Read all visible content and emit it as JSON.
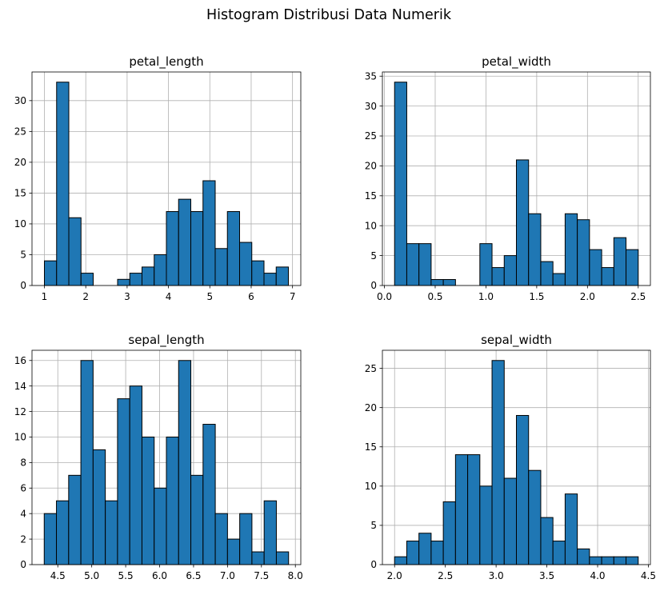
{
  "figure": {
    "title": "Histogram Distribusi Data Numerik"
  },
  "colors": {
    "bar_fill": "#1f77b4",
    "bar_edge": "#000000",
    "grid": "#b0b0b0",
    "axis": "#000000"
  },
  "chart_data": [
    {
      "type": "bar",
      "title": "petal_length",
      "bin_width": 0.295,
      "bin_starts": [
        1.0,
        1.295,
        1.59,
        1.885,
        2.18,
        2.475,
        2.77,
        3.065,
        3.36,
        3.655,
        3.95,
        4.245,
        4.54,
        4.835,
        5.13,
        5.425,
        5.72,
        6.015,
        6.31,
        6.605
      ],
      "values": [
        4,
        33,
        11,
        2,
        0,
        0,
        1,
        2,
        3,
        5,
        12,
        14,
        12,
        17,
        6,
        12,
        7,
        4,
        2,
        3
      ],
      "xlim": [
        0.7,
        7.2
      ],
      "ylim": [
        0,
        34.65
      ],
      "xticks": [
        "1",
        "2",
        "3",
        "4",
        "5",
        "6",
        "7"
      ],
      "yticks": [
        "0",
        "5",
        "10",
        "15",
        "20",
        "25",
        "30"
      ],
      "grid": true
    },
    {
      "type": "bar",
      "title": "petal_width",
      "bin_width": 0.12,
      "bin_starts": [
        0.1,
        0.22,
        0.34,
        0.46,
        0.58,
        0.7,
        0.82,
        0.94,
        1.06,
        1.18,
        1.3,
        1.42,
        1.54,
        1.66,
        1.78,
        1.9,
        2.02,
        2.14,
        2.26,
        2.38
      ],
      "values": [
        34,
        7,
        7,
        1,
        1,
        0,
        0,
        7,
        3,
        5,
        21,
        12,
        4,
        2,
        12,
        11,
        6,
        3,
        8,
        6
      ],
      "xlim": [
        -0.02,
        2.62
      ],
      "ylim": [
        0,
        35.7
      ],
      "xticks": [
        "0.0",
        "0.5",
        "1.0",
        "1.5",
        "2.0",
        "2.5"
      ],
      "yticks": [
        "0",
        "5",
        "10",
        "15",
        "20",
        "25",
        "30",
        "35"
      ],
      "grid": true
    },
    {
      "type": "bar",
      "title": "sepal_length",
      "bin_width": 0.18,
      "bin_starts": [
        4.3,
        4.48,
        4.66,
        4.84,
        5.02,
        5.2,
        5.38,
        5.56,
        5.74,
        5.92,
        6.1,
        6.28,
        6.46,
        6.64,
        6.82,
        7.0,
        7.18,
        7.36,
        7.54,
        7.72
      ],
      "values": [
        4,
        5,
        7,
        16,
        9,
        5,
        13,
        14,
        10,
        6,
        10,
        16,
        7,
        11,
        4,
        2,
        4,
        1,
        5,
        1
      ],
      "xlim": [
        4.12,
        8.08
      ],
      "ylim": [
        0,
        16.8
      ],
      "xticks": [
        "4.5",
        "5.0",
        "5.5",
        "6.0",
        "6.5",
        "7.0",
        "7.5",
        "8.0"
      ],
      "yticks": [
        "0",
        "2",
        "4",
        "6",
        "8",
        "10",
        "12",
        "14",
        "16"
      ],
      "grid": true
    },
    {
      "type": "bar",
      "title": "sepal_width",
      "bin_width": 0.12,
      "bin_starts": [
        2.0,
        2.12,
        2.24,
        2.36,
        2.48,
        2.6,
        2.72,
        2.84,
        2.96,
        3.08,
        3.2,
        3.32,
        3.44,
        3.56,
        3.68,
        3.8,
        3.92,
        4.04,
        4.16,
        4.28
      ],
      "values": [
        1,
        3,
        4,
        3,
        8,
        14,
        14,
        10,
        26,
        11,
        19,
        12,
        6,
        3,
        9,
        2,
        1,
        1,
        1,
        1
      ],
      "xlim": [
        1.88,
        4.52
      ],
      "ylim": [
        0,
        27.3
      ],
      "xticks": [
        "2.0",
        "2.5",
        "3.0",
        "3.5",
        "4.0",
        "4.5"
      ],
      "yticks": [
        "0",
        "5",
        "10",
        "15",
        "20",
        "25"
      ],
      "grid": true
    }
  ]
}
